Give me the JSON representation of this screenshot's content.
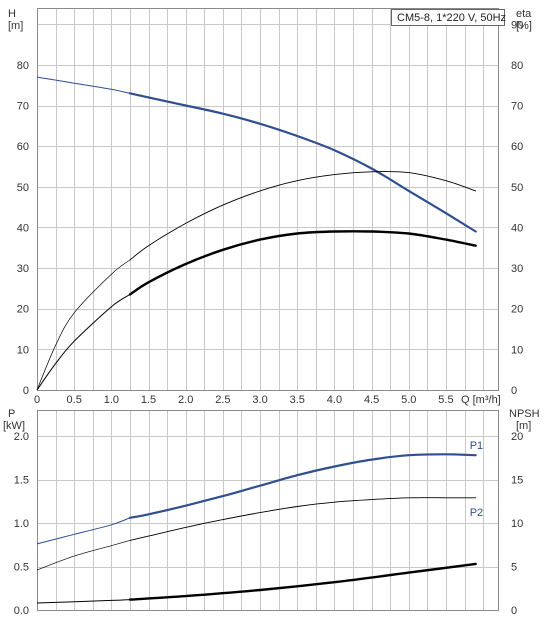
{
  "model_label": "CM5-8, 1*220 V, 50Hz",
  "colors": {
    "blue": "#2f4f8f",
    "black": "#000000",
    "grid": "#c8c8c8"
  },
  "chart_data": [
    {
      "type": "line",
      "name": "head-efficiency",
      "left_axis_label": [
        "H",
        "[m]"
      ],
      "right_axis_label": [
        "eta",
        "[%]"
      ],
      "x_axis_label": "Q [m³/h]",
      "xlim": [
        0,
        6.2
      ],
      "ylim": [
        0,
        94
      ],
      "grid": true,
      "x_ticks": [
        "0",
        "0.5",
        "1.0",
        "1.5",
        "2.0",
        "2.5",
        "3.0",
        "3.5",
        "4.0",
        "4.5",
        "5.0",
        "5.5"
      ],
      "left_ticks": [
        "0",
        "10",
        "20",
        "30",
        "40",
        "50",
        "60",
        "70",
        "80"
      ],
      "right_ticks": [
        "0",
        "10",
        "20",
        "30",
        "40",
        "50",
        "60",
        "70",
        "80",
        "90"
      ],
      "series": [
        {
          "style": "blue-thick",
          "dashed_until": 1.25,
          "x": [
            0,
            0.5,
            1.0,
            1.25,
            1.5,
            2.0,
            2.5,
            3.0,
            3.5,
            4.0,
            4.5,
            5.0,
            5.5,
            5.9
          ],
          "y": [
            77,
            75.5,
            74,
            73,
            72,
            70,
            68,
            65.5,
            62.5,
            59,
            54.5,
            49,
            43.5,
            39
          ]
        },
        {
          "style": "thin",
          "dashed_until": 1.25,
          "x": [
            0,
            0.25,
            0.5,
            1.0,
            1.25,
            1.5,
            2.0,
            2.5,
            3.0,
            3.5,
            4.0,
            4.5,
            5.0,
            5.5,
            5.9
          ],
          "y": [
            0,
            11,
            19,
            28.5,
            32,
            35.5,
            41,
            45.5,
            49,
            51.5,
            53,
            53.7,
            53.5,
            51.5,
            49
          ]
        },
        {
          "style": "black-thick",
          "dashed_until": 1.25,
          "x": [
            0,
            0.25,
            0.5,
            1.0,
            1.25,
            1.5,
            2.0,
            2.5,
            3.0,
            3.5,
            4.0,
            4.5,
            5.0,
            5.5,
            5.9
          ],
          "y": [
            0,
            6.5,
            12,
            20.5,
            23.5,
            26.5,
            31,
            34.5,
            37,
            38.5,
            39,
            39,
            38.5,
            37,
            35.5
          ]
        }
      ]
    },
    {
      "type": "line",
      "name": "power-npsh",
      "left_axis_label": [
        "P",
        "[kW]"
      ],
      "right_axis_label": [
        "NPSH",
        "[m]"
      ],
      "xlim": [
        0,
        6.2
      ],
      "ylim": [
        0,
        2.3
      ],
      "grid": true,
      "left_ticks": [
        "0.0",
        "0.5",
        "1.0",
        "1.5",
        "2.0"
      ],
      "right_ticks": [
        "0",
        "5",
        "10",
        "15",
        "20"
      ],
      "series": [
        {
          "name": "P1",
          "style": "blue-thick",
          "dashed_until": 1.25,
          "x": [
            0,
            0.5,
            1.0,
            1.25,
            1.5,
            2.0,
            2.5,
            3.0,
            3.5,
            4.0,
            4.5,
            5.0,
            5.5,
            5.9
          ],
          "y": [
            0.76,
            0.87,
            0.98,
            1.06,
            1.1,
            1.2,
            1.31,
            1.43,
            1.55,
            1.65,
            1.73,
            1.78,
            1.79,
            1.78
          ]
        },
        {
          "name": "P2",
          "style": "thin",
          "dashed_until": 1.25,
          "x": [
            0,
            0.5,
            1.0,
            1.25,
            1.5,
            2.0,
            2.5,
            3.0,
            3.5,
            4.0,
            4.5,
            5.0,
            5.5,
            5.9
          ],
          "y": [
            0.46,
            0.62,
            0.74,
            0.8,
            0.85,
            0.95,
            1.04,
            1.12,
            1.19,
            1.24,
            1.27,
            1.29,
            1.29,
            1.29
          ]
        },
        {
          "name": "NPSH",
          "style": "black-thick",
          "axis": "right",
          "dashed_until": 1.25,
          "x": [
            0,
            1.0,
            1.25,
            2.0,
            3.0,
            4.0,
            5.0,
            5.9
          ],
          "y": [
            0.8,
            1.1,
            1.2,
            1.6,
            2.3,
            3.2,
            4.3,
            5.3
          ]
        }
      ]
    }
  ]
}
